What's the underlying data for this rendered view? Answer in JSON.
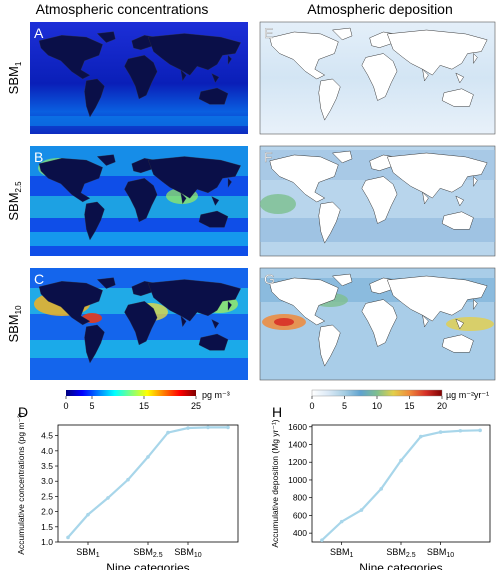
{
  "headings": {
    "left": "Atmospheric concentrations",
    "right": "Atmospheric deposition"
  },
  "maps": {
    "letters": [
      "A",
      "B",
      "C",
      "E",
      "F",
      "G"
    ],
    "rows": [
      {
        "base": "SBM",
        "sub": "1"
      },
      {
        "base": "SBM",
        "sub": "2.5"
      },
      {
        "base": "SBM",
        "sub": "10"
      }
    ]
  },
  "colorbars": {
    "concentration": {
      "ticks": [
        "0",
        "5",
        "15",
        "25"
      ],
      "unit": "pg m⁻³",
      "colors": [
        "#00007f",
        "#0000ff",
        "#007fff",
        "#00ffff",
        "#7fff7f",
        "#ffff00",
        "#ff7f00",
        "#ff0000",
        "#7f0000"
      ]
    },
    "deposition": {
      "ticks": [
        "0",
        "5",
        "10",
        "15",
        "20"
      ],
      "unit": "µg m⁻²yr⁻¹",
      "colors": [
        "#ffffff",
        "#dbe9f6",
        "#a6cee3",
        "#5fa2cf",
        "#7ebf8f",
        "#e3d04a",
        "#f08a3a",
        "#d73027",
        "#7f0000"
      ]
    }
  },
  "chart_data": [
    {
      "panel": "D",
      "type": "line",
      "ylabel_main": "Accumulative concentrations",
      "ylabel_unit": "(pg m⁻³)",
      "xlabel": "Nine categories",
      "x": [
        1,
        2,
        3,
        4,
        5,
        6,
        7,
        8,
        9
      ],
      "y": [
        1.15,
        1.9,
        2.45,
        3.05,
        3.8,
        4.6,
        4.75,
        4.77,
        4.77
      ],
      "ylim": [
        1.0,
        4.85
      ],
      "yticks": [
        "1.0",
        "1.5",
        "2.0",
        "2.5",
        "3.0",
        "3.5",
        "4.0",
        "4.5"
      ],
      "xticklabels": [
        {
          "x": 2,
          "base": "SBM",
          "sub": "1"
        },
        {
          "x": 5,
          "base": "SBM",
          "sub": "2.5"
        },
        {
          "x": 7,
          "base": "SBM",
          "sub": "10"
        }
      ],
      "line_color": "#a8d6ea",
      "grid": false
    },
    {
      "panel": "H",
      "type": "line",
      "ylabel_main": "Accumulative deposition",
      "ylabel_unit": "(Mg yr⁻¹)",
      "xlabel": "Nine categories",
      "x": [
        1,
        2,
        3,
        4,
        5,
        6,
        7,
        8,
        9
      ],
      "y": [
        320,
        530,
        660,
        900,
        1220,
        1490,
        1540,
        1555,
        1560
      ],
      "ylim": [
        300,
        1620
      ],
      "yticks": [
        "400",
        "600",
        "800",
        "1000",
        "1200",
        "1400",
        "1600"
      ],
      "xticklabels": [
        {
          "x": 2,
          "base": "SBM",
          "sub": "1"
        },
        {
          "x": 5,
          "base": "SBM",
          "sub": "2.5"
        },
        {
          "x": 7,
          "base": "SBM",
          "sub": "10"
        }
      ],
      "line_color": "#a8d6ea",
      "grid": false
    }
  ]
}
